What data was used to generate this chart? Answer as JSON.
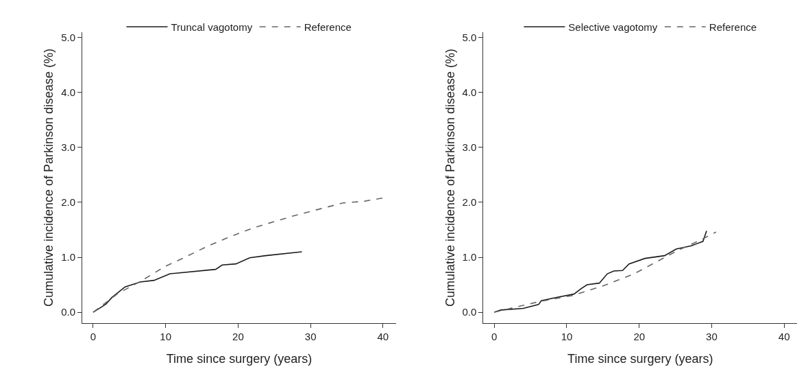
{
  "chart_data": [
    {
      "type": "line",
      "xlabel": "Time since surgery (years)",
      "ylabel": "Cumulative incidence of Parkinson disease (%)",
      "xlim": [
        -1.5,
        41.8
      ],
      "ylim": [
        -0.2,
        5.1
      ],
      "xticks": [
        0,
        10,
        20,
        30,
        40
      ],
      "yticks": [
        {
          "value": 0,
          "label": "0.0"
        },
        {
          "value": 1,
          "label": "1.0"
        },
        {
          "value": 2,
          "label": "2.0"
        },
        {
          "value": 3,
          "label": "3.0"
        },
        {
          "value": 4,
          "label": "4.0"
        },
        {
          "value": 5,
          "label": "5.0"
        }
      ],
      "legend": "top",
      "marker": "none",
      "series": [
        {
          "name": "Truncal vagotomy",
          "color": "#1a1a1a",
          "line_style": "solid",
          "x": [
            0,
            1.2,
            1.77,
            2.6,
            3.55,
            4.4,
            6.5,
            8.4,
            10.6,
            16.9,
            17.8,
            19.7,
            21.6,
            23.8,
            28.8
          ],
          "values": [
            0,
            0.1,
            0.15,
            0.27,
            0.37,
            0.46,
            0.55,
            0.58,
            0.7,
            0.78,
            0.86,
            0.88,
            0.99,
            1.03,
            1.1
          ]
        },
        {
          "name": "Reference",
          "color": "#666666",
          "line_style": "dashed",
          "x": [
            0,
            3.4,
            6.5,
            10,
            12.5,
            15.9,
            19,
            22.2,
            27.8,
            31,
            34.5,
            37.4,
            40
          ],
          "values": [
            0,
            0.34,
            0.56,
            0.84,
            0.99,
            1.21,
            1.38,
            1.54,
            1.76,
            1.87,
            1.99,
            2.02,
            2.08
          ]
        }
      ]
    },
    {
      "type": "line",
      "xlabel": "Time since surgery (years)",
      "ylabel": "Cumulative incidence of Parkinson disease (%)",
      "xlim": [
        -1.5,
        41.8
      ],
      "ylim": [
        -0.2,
        5.1
      ],
      "xticks": [
        0,
        10,
        20,
        30,
        40
      ],
      "yticks": [
        {
          "value": 0,
          "label": "0.0"
        },
        {
          "value": 1,
          "label": "1.0"
        },
        {
          "value": 2,
          "label": "2.0"
        },
        {
          "value": 3,
          "label": "3.0"
        },
        {
          "value": 4,
          "label": "4.0"
        },
        {
          "value": 5,
          "label": "5.0"
        }
      ],
      "legend": "top",
      "marker": "none",
      "series": [
        {
          "name": "Selective vagotomy",
          "color": "#1a1a1a",
          "line_style": "solid",
          "x": [
            0,
            0.9,
            4.0,
            6.1,
            6.5,
            8.6,
            11.0,
            11.9,
            12.8,
            14.5,
            15.6,
            16.5,
            17.7,
            18.6,
            20.8,
            23.5,
            25.1,
            27.2,
            28.8,
            29.3
          ],
          "values": [
            0,
            0.04,
            0.07,
            0.14,
            0.21,
            0.27,
            0.33,
            0.42,
            0.5,
            0.53,
            0.7,
            0.75,
            0.76,
            0.88,
            0.98,
            1.03,
            1.15,
            1.21,
            1.29,
            1.48
          ]
        },
        {
          "name": "Reference",
          "color": "#666666",
          "line_style": "dashed",
          "x": [
            0,
            6.1,
            11.0,
            15.0,
            19.3,
            25.4,
            28.4,
            30.6
          ],
          "values": [
            0,
            0.19,
            0.31,
            0.48,
            0.7,
            1.13,
            1.31,
            1.46
          ]
        }
      ]
    }
  ]
}
